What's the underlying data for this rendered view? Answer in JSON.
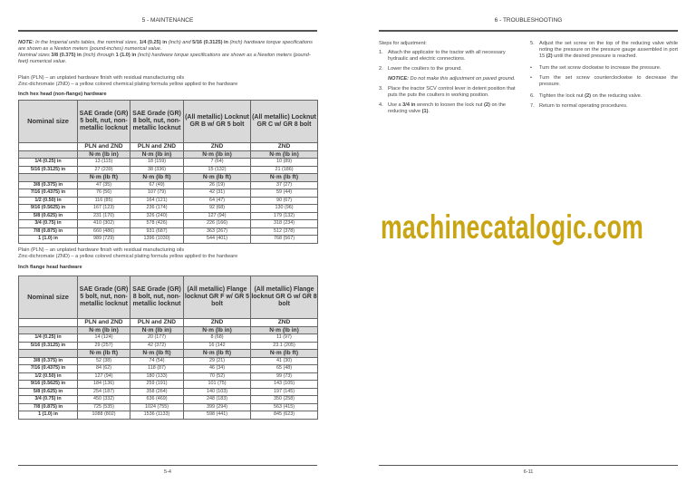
{
  "left_page": {
    "header": "5 - MAINTENANCE",
    "note_label": "NOTE:",
    "note_parts": [
      " In the Imperial units tables, the nominal sizes, ",
      "1/4 (0.25) in",
      " (inch) and ",
      "5/16 (0.3125) in",
      " (inch) hardware torque specifications are shown as a Newton meters (pound-inches) numerical value."
    ],
    "note2_parts": [
      "Nominal sizes ",
      "3/8 (0.375) in",
      " (inch) through ",
      "1 (1.0) in",
      " (inch) hardware torque specifications are shown as a Newton meters (pound-feet) numerical value."
    ],
    "pln_def": "Plain (PLN) – an unplated hardware finish with residual manufacturing oils",
    "znd_def": "Zinc-dichromate (ZND) – a yellow colored chemical plating formula yellow applied to the hardware",
    "tables": [
      {
        "title": "Inch hex head (non-flange) hardware",
        "headers": [
          "Nominal size",
          "SAE Grade (GR) 5 bolt, nut, non-metallic locknut",
          "SAE Grade (GR) 8 bolt, nut, non-metallic locknut",
          "(All metallic) Locknut GR B w/ GR 5 bolt",
          "(All metallic) Locknut GR C w/ GR 8 bolt"
        ],
        "finish": [
          "",
          "PLN and ZND",
          "PLN and ZND",
          "ZND",
          "ZND"
        ],
        "unit_in": [
          "",
          "N·m (lb in)",
          "N·m (lb in)",
          "N·m (lb in)",
          "N·m (lb in)"
        ],
        "rows_in": [
          [
            "1/4 (0.25) in",
            "13 (115)",
            "18 (159)",
            "7 (64)",
            "10 (89)"
          ],
          [
            "5/16 (0.3125) in",
            "27 (239)",
            "38 (336)",
            "15 (132)",
            "21 (186)"
          ]
        ],
        "unit_ft": [
          "",
          "N·m (lb ft)",
          "N·m (lb ft)",
          "N·m (lb ft)",
          "N·m (lb ft)"
        ],
        "rows_ft": [
          [
            "3/8 (0.375) in",
            "47 (35)",
            "67 (49)",
            "26 (19)",
            "37 (27)"
          ],
          [
            "7/16 (0.4375) in",
            "76 (56)",
            "107 (79)",
            "42 (31)",
            "59 (44)"
          ],
          [
            "1/2 (0.50) in",
            "116 (85)",
            "164 (121)",
            "64 (47)",
            "90 (67)"
          ],
          [
            "9/16 (0.5625) in",
            "167 (123)",
            "236 (174)",
            "92 (68)",
            "130 (96)"
          ],
          [
            "5/8 (0.625) in",
            "231 (170)",
            "326 (240)",
            "127 (94)",
            "179 (132)"
          ],
          [
            "3/4 (0.75) in",
            "410 (302)",
            "578 (426)",
            "226 (166)",
            "318 (234)"
          ],
          [
            "7/8 (0.875) in",
            "660 (486)",
            "931 (687)",
            "363 (267)",
            "512 (378)"
          ],
          [
            "1 (1.0) in",
            "989 (729)",
            "1396 (1030)",
            "544 (401)",
            "768 (567)"
          ]
        ]
      },
      {
        "title": "Inch flange head hardware",
        "headers": [
          "Nominal size",
          "SAE Grade (GR) 5 bolt, nut, non-metallic locknut",
          "SAE Grade (GR) 8 bolt, nut, non-metallic locknut",
          "(All metallic) Flange locknut GR F w/ GR 5 bolt",
          "(All metallic) Flange locknut GR G w/ GR 8 bolt"
        ],
        "finish": [
          "",
          "PLN and ZND",
          "PLN and ZND",
          "ZND",
          "ZND"
        ],
        "unit_in": [
          "",
          "N·m (lb in)",
          "N·m (lb in)",
          "N·m (lb in)",
          "N·m (lb in)"
        ],
        "rows_in": [
          [
            "1/4 (0.25) in",
            "14 (124)",
            "20 (177)",
            "8 (68)",
            "11 (97)"
          ],
          [
            "5/16 (0.3125) in",
            "29 (257)",
            "42 (372)",
            "16 (142",
            "23.1 (205)"
          ]
        ],
        "unit_ft": [
          "",
          "N·m (lb ft)",
          "N·m (lb ft)",
          "N·m (lb ft)",
          "N·m (lb ft)"
        ],
        "rows_ft": [
          [
            "3/8 (0.375) in",
            "52 (38)",
            "74 (54)",
            "29 (21)",
            "41 (30)"
          ],
          [
            "7/16 (0.4375) in",
            "84 (62)",
            "118 (87)",
            "46 (34)",
            "65 (48)"
          ],
          [
            "1/2 (0.50) in",
            "127 (94)",
            "180 (133)",
            "70 (52)",
            "99 (73)"
          ],
          [
            "9/16 (0.5625) in",
            "184 (136)",
            "259 (191)",
            "101 (75)",
            "143 (105)"
          ],
          [
            "5/8 (0.625) in",
            "254 (187)",
            "358 (264)",
            "140 (103)",
            "197 (145)"
          ],
          [
            "3/4 (0.75) in",
            "450 (332)",
            "636 (469)",
            "248 (183)",
            "350 (258)"
          ],
          [
            "7/8 (0.875) in",
            "725 (535)",
            "1024 (755)",
            "399 (294)",
            "563 (415)"
          ],
          [
            "1 (1.0) in",
            "1088 (802)",
            "1536 (1133)",
            "598 (441)",
            "845 (623)"
          ]
        ]
      }
    ],
    "page_number": "5-4"
  },
  "right_page": {
    "header": "6 - TROUBLESHOOTING",
    "intro": "Steps for adjustment:",
    "step1": "Attach the applicator to the tractor with all necessary hydraulic and electric connections.",
    "step2": "Lower the coulters to the ground.",
    "notice_label": "NOTICE:",
    "notice_text": " Do not make this adjustment on paved ground.",
    "step3": "Place the tractor SCV control lever in detent position that puts the puts the coulters in working position.",
    "step4_parts": [
      "Use a ",
      "3/4 in",
      " wrench to loosen the lock nut ",
      "(2)",
      " on the reducing valve ",
      "(1)",
      "."
    ],
    "step5_parts": [
      "Adjust the set screw on the top of the reducing valve while noting the pressure on the pressure gauge assembled in port 15 ",
      "(2)",
      " until the desired pressure is reached."
    ],
    "bullet1": "Turn the set screw clockwise to increase the pressure.",
    "bullet2": "Turn the set screw counterclockwise to decrease the pressure.",
    "step6_parts": [
      "Tighten the lock nut ",
      "(2)",
      " on the reducing valve."
    ],
    "step7": "Return to normal operating procedures.",
    "nums": [
      "1.",
      "2.",
      "3.",
      "4.",
      "5.",
      "6.",
      "7."
    ],
    "bullet": "•",
    "page_number": "6-11"
  },
  "watermark": "machinecatalogic.com",
  "watermark_color": "#c9a514"
}
